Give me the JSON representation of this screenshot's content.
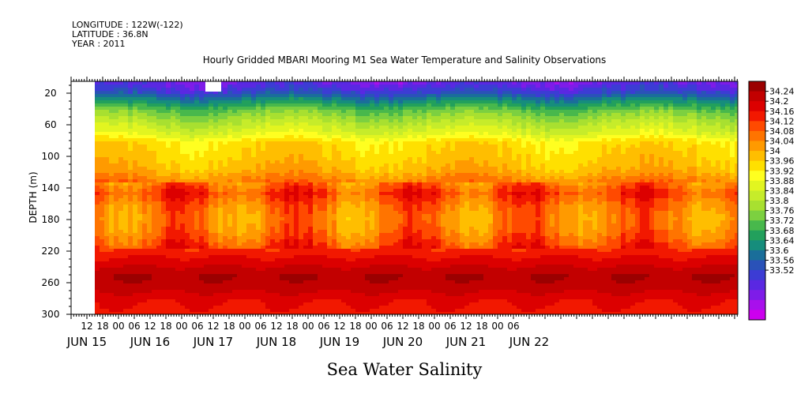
{
  "header_info": {
    "longitude": "LONGITUDE : 122W(-122)",
    "latitude": "LATITUDE : 36.8N",
    "year": "YEAR : 2011"
  },
  "chart_data": {
    "type": "heatmap",
    "title": "Hourly Gridded MBARI Mooring M1 Sea Water Temperature and Salinity Observations",
    "variable_label": "Sea Water Salinity",
    "ylabel": "DEPTH (m)",
    "xlabel": "",
    "y_axis": {
      "ticks": [
        20,
        60,
        100,
        140,
        180,
        220,
        260,
        300
      ],
      "range": [
        5,
        300
      ],
      "inverted": true
    },
    "x_axis": {
      "hour_ticks": [
        "12",
        "18",
        "00",
        "06",
        "12",
        "18",
        "00",
        "06",
        "12",
        "18",
        "00",
        "06",
        "12",
        "18",
        "00",
        "06",
        "12",
        "18",
        "00",
        "06",
        "12",
        "18",
        "00",
        "06",
        "12",
        "18",
        "00",
        "06"
      ],
      "hour_start": "JUN 15 12:00",
      "hour_step": 6,
      "day_labels": [
        "JUN 15",
        "JUN 16",
        "JUN 17",
        "JUN 18",
        "JUN 19",
        "JUN 20",
        "JUN 21",
        "JUN 22"
      ],
      "range": [
        "JUN 15 06:00",
        "JUN 22 12:00"
      ]
    },
    "data_start": "JUN 15 15:00",
    "colorbar": {
      "levels": [
        "34.24",
        "34.2",
        "34.16",
        "34.12",
        "34.08",
        "34.04",
        "34",
        "33.96",
        "33.92",
        "33.88",
        "33.84",
        "33.8",
        "33.76",
        "33.72",
        "33.68",
        "33.64",
        "33.6",
        "33.56",
        "33.52"
      ],
      "range": [
        33.52,
        34.28
      ],
      "colors": [
        "#9b0000",
        "#c20000",
        "#dc0000",
        "#f21800",
        "#ff4a00",
        "#ff7400",
        "#ff9a00",
        "#ffbe00",
        "#ffe000",
        "#ffff20",
        "#e2f520",
        "#c6ec2a",
        "#a8e030",
        "#7cd040",
        "#48b84c",
        "#22a05c",
        "#168d7c",
        "#1a6e9a",
        "#2a52b8",
        "#3c3cd4",
        "#5a28e2",
        "#7e1ce8",
        "#a810ec",
        "#cc00ee"
      ]
    },
    "depth_profile": {
      "depths": [
        5,
        15,
        25,
        40,
        55,
        70,
        80,
        90,
        100,
        115,
        130,
        145,
        160,
        175,
        190,
        205,
        220,
        235,
        250,
        265,
        280,
        300
      ],
      "salinity": [
        33.62,
        33.66,
        33.74,
        33.84,
        33.9,
        33.95,
        34.01,
        34.02,
        34.03,
        34.05,
        34.1,
        34.15,
        34.11,
        34.09,
        34.1,
        34.13,
        34.17,
        34.21,
        34.25,
        34.23,
        34.19,
        34.17
      ]
    },
    "missing_blocks": [
      {
        "time_start": "JUN 17 09:00",
        "time_end": "JUN 17 15:00",
        "depth_start": 5,
        "depth_end": 18
      }
    ]
  }
}
